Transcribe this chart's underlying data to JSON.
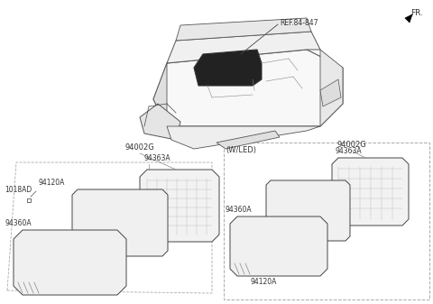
{
  "bg_color": "#ffffff",
  "lc": "#444444",
  "lc_light": "#aaaaaa",
  "fs_small": 5.5,
  "fs_med": 6.0,
  "fr_label": "FR.",
  "ref_label": "REF.84-847",
  "wled_label": "(W/LED)"
}
